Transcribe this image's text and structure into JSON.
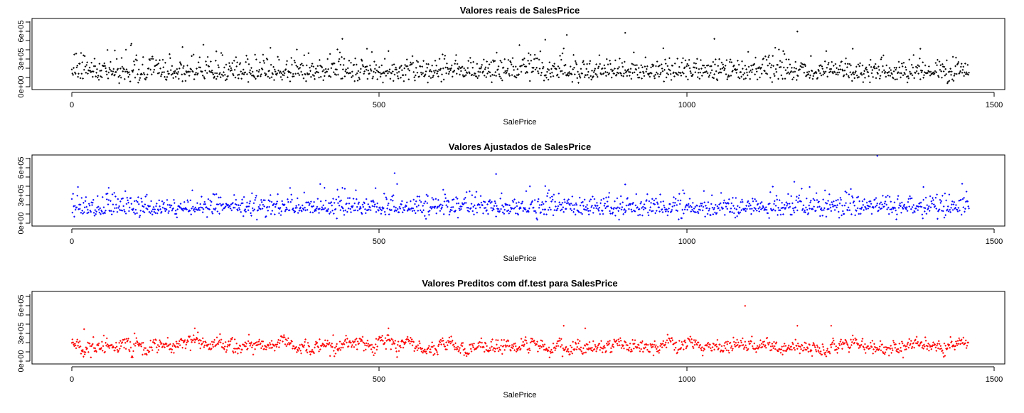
{
  "chart_data": [
    {
      "type": "scatter",
      "title": "Valores reais de SalesPrice",
      "xlabel": "SalePrice",
      "ylabel": "",
      "xlim": [
        0,
        1500
      ],
      "ylim": [
        0,
        800000
      ],
      "x_ticks": [
        "0",
        "500",
        "1000",
        "1500"
      ],
      "y_ticks": [
        "0e+00",
        "3e+05",
        "6e+05"
      ],
      "color": "#000000",
      "n_points": 1460,
      "y_summary": {
        "typical_low": 100000,
        "typical_center": 180000,
        "typical_high": 300000
      },
      "outliers": [
        {
          "x": 70,
          "y": 420000
        },
        {
          "x": 180,
          "y": 460000
        },
        {
          "x": 235,
          "y": 410000
        },
        {
          "x": 440,
          "y": 555000
        },
        {
          "x": 480,
          "y": 440000
        },
        {
          "x": 770,
          "y": 545000
        },
        {
          "x": 805,
          "y": 600000
        },
        {
          "x": 900,
          "y": 625000
        },
        {
          "x": 1045,
          "y": 555000
        },
        {
          "x": 1180,
          "y": 640000
        },
        {
          "x": 1270,
          "y": 440000
        },
        {
          "x": 1380,
          "y": 440000
        }
      ]
    },
    {
      "type": "scatter",
      "title": "Valores Ajustados de SalesPrice",
      "xlabel": "SalePrice",
      "ylabel": "",
      "xlim": [
        0,
        1500
      ],
      "ylim": [
        0,
        800000
      ],
      "x_ticks": [
        "0",
        "500",
        "1000",
        "1500"
      ],
      "y_ticks": [
        "0e+00",
        "3e+05",
        "6e+05"
      ],
      "color": "#0000ff",
      "n_points": 1460,
      "y_summary": {
        "typical_low": 110000,
        "typical_center": 185000,
        "typical_high": 290000
      },
      "outliers": [
        {
          "x": 60,
          "y": 410000
        },
        {
          "x": 440,
          "y": 410000
        },
        {
          "x": 525,
          "y": 580000
        },
        {
          "x": 690,
          "y": 570000
        },
        {
          "x": 770,
          "y": 430000
        },
        {
          "x": 900,
          "y": 450000
        },
        {
          "x": 1175,
          "y": 480000
        },
        {
          "x": 1200,
          "y": 420000
        },
        {
          "x": 1310,
          "y": 780000
        },
        {
          "x": 1385,
          "y": 420000
        }
      ]
    },
    {
      "type": "scatter",
      "title": "Valores Preditos com df.test para SalesPrice",
      "xlabel": "SalePrice",
      "ylabel": "",
      "xlim": [
        0,
        1500
      ],
      "ylim": [
        0,
        800000
      ],
      "x_ticks": [
        "0",
        "500",
        "1000",
        "1500"
      ],
      "y_ticks": [
        "0e+00",
        "3e+05",
        "6e+05"
      ],
      "color": "#ff0000",
      "n_points": 1459,
      "y_summary": {
        "typical_low": 100000,
        "typical_center": 180000,
        "typical_high": 330000
      },
      "outliers": [
        {
          "x": 20,
          "y": 370000
        },
        {
          "x": 200,
          "y": 380000
        },
        {
          "x": 515,
          "y": 380000
        },
        {
          "x": 800,
          "y": 410000
        },
        {
          "x": 835,
          "y": 380000
        },
        {
          "x": 1095,
          "y": 640000
        },
        {
          "x": 1180,
          "y": 410000
        },
        {
          "x": 1235,
          "y": 410000
        }
      ]
    }
  ]
}
